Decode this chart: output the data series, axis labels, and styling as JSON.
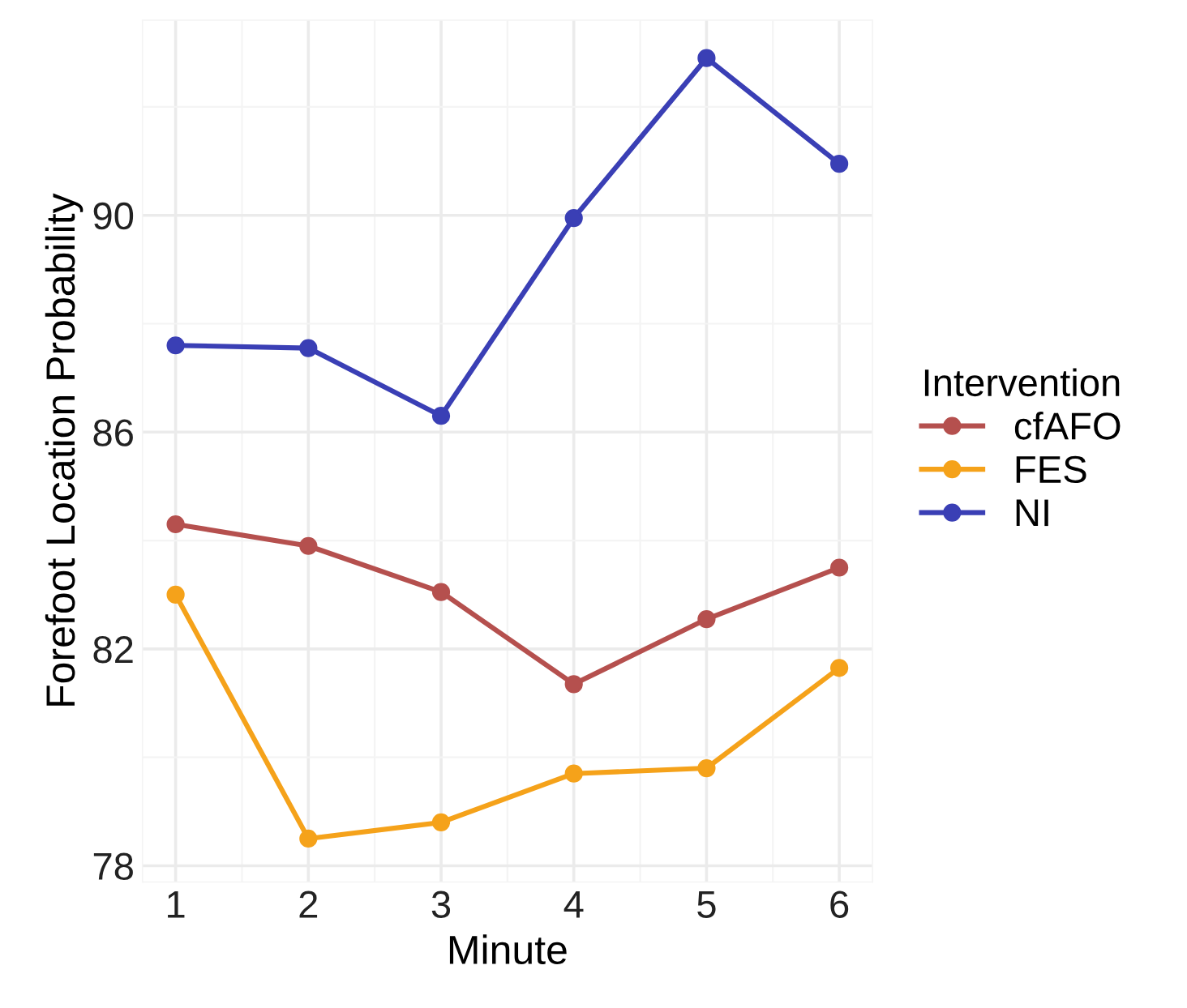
{
  "chart_data": {
    "type": "line",
    "xlabel": "Minute",
    "ylabel": "Forefoot Location Probability",
    "legend_title": "Intervention",
    "x": [
      1,
      2,
      3,
      4,
      5,
      6
    ],
    "series": [
      {
        "name": "cfAFO",
        "color": "#b5504e",
        "values": [
          84.3,
          83.9,
          83.05,
          81.35,
          82.55,
          83.5
        ]
      },
      {
        "name": "FES",
        "color": "#f5a21a",
        "values": [
          83.0,
          78.5,
          78.8,
          79.7,
          79.8,
          81.65
        ]
      },
      {
        "name": "NI",
        "color": "#3a3fb5",
        "values": [
          87.6,
          87.55,
          86.3,
          89.95,
          92.9,
          90.95
        ]
      }
    ],
    "xlim": [
      0.75,
      6.25
    ],
    "ylim": [
      77.7,
      93.6
    ],
    "xticks": [
      1,
      2,
      3,
      4,
      5,
      6
    ],
    "yticks": [
      78,
      82,
      86,
      90
    ],
    "grid": true,
    "legend": "right",
    "marker": "circle",
    "line_style": "solid"
  }
}
